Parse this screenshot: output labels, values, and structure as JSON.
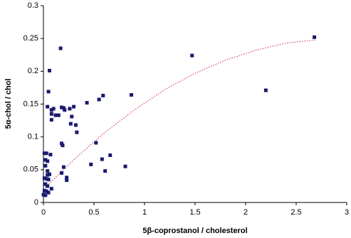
{
  "chart_data": {
    "type": "scatter",
    "x_label": "5β-coprostanol / cholesterol",
    "y_label": "5α-chol / chol",
    "color": "#1a1a70",
    "x": [
      2.68,
      1.47,
      2.2,
      0.87,
      0.59,
      0.55,
      0.43,
      0.17,
      0.06,
      0.05,
      0.04,
      0.08,
      0.1,
      0.08,
      0.12,
      0.15,
      0.18,
      0.2,
      0.21,
      0.26,
      0.3,
      0.28,
      0.27,
      0.32,
      0.33,
      0.08,
      0.18,
      0.19,
      0.52,
      0.66,
      0.58,
      0.47,
      0.61,
      0.81,
      0.2,
      0.18,
      0.23,
      0.23,
      0.01,
      0.03,
      0.07,
      0.02,
      0.04,
      0.02,
      0.04,
      0.04,
      0.06,
      0.01,
      0.03,
      0.05,
      0.02,
      0.04,
      0.08,
      0.01,
      0.03,
      0.05,
      0.0,
      0.02
    ],
    "values": [
      0.252,
      0.224,
      0.171,
      0.164,
      0.163,
      0.157,
      0.152,
      0.235,
      0.201,
      0.169,
      0.146,
      0.141,
      0.143,
      0.135,
      0.133,
      0.133,
      0.145,
      0.144,
      0.141,
      0.143,
      0.146,
      0.131,
      0.12,
      0.118,
      0.107,
      0.126,
      0.09,
      0.087,
      0.091,
      0.072,
      0.066,
      0.058,
      0.048,
      0.055,
      0.054,
      0.045,
      0.038,
      0.034,
      0.075,
      0.075,
      0.073,
      0.065,
      0.063,
      0.056,
      0.048,
      0.042,
      0.043,
      0.037,
      0.036,
      0.035,
      0.028,
      0.025,
      0.021,
      0.018,
      0.017,
      0.015,
      0.012,
      0.011
    ],
    "trend": {
      "color": "#cc2255",
      "x": [
        0,
        0.3,
        0.6,
        0.9,
        1.2,
        1.5,
        1.8,
        2.1,
        2.4,
        2.7
      ],
      "values": [
        0.02,
        0.065,
        0.106,
        0.141,
        0.172,
        0.197,
        0.217,
        0.232,
        0.243,
        0.248
      ]
    },
    "xlim": [
      0,
      3
    ],
    "ylim": [
      0,
      0.3
    ],
    "xticks": [
      0,
      0.5,
      1,
      1.5,
      2,
      2.5,
      3
    ],
    "yticks": [
      0,
      0.05,
      0.1,
      0.15,
      0.2,
      0.25,
      0.3
    ],
    "grid": false
  }
}
